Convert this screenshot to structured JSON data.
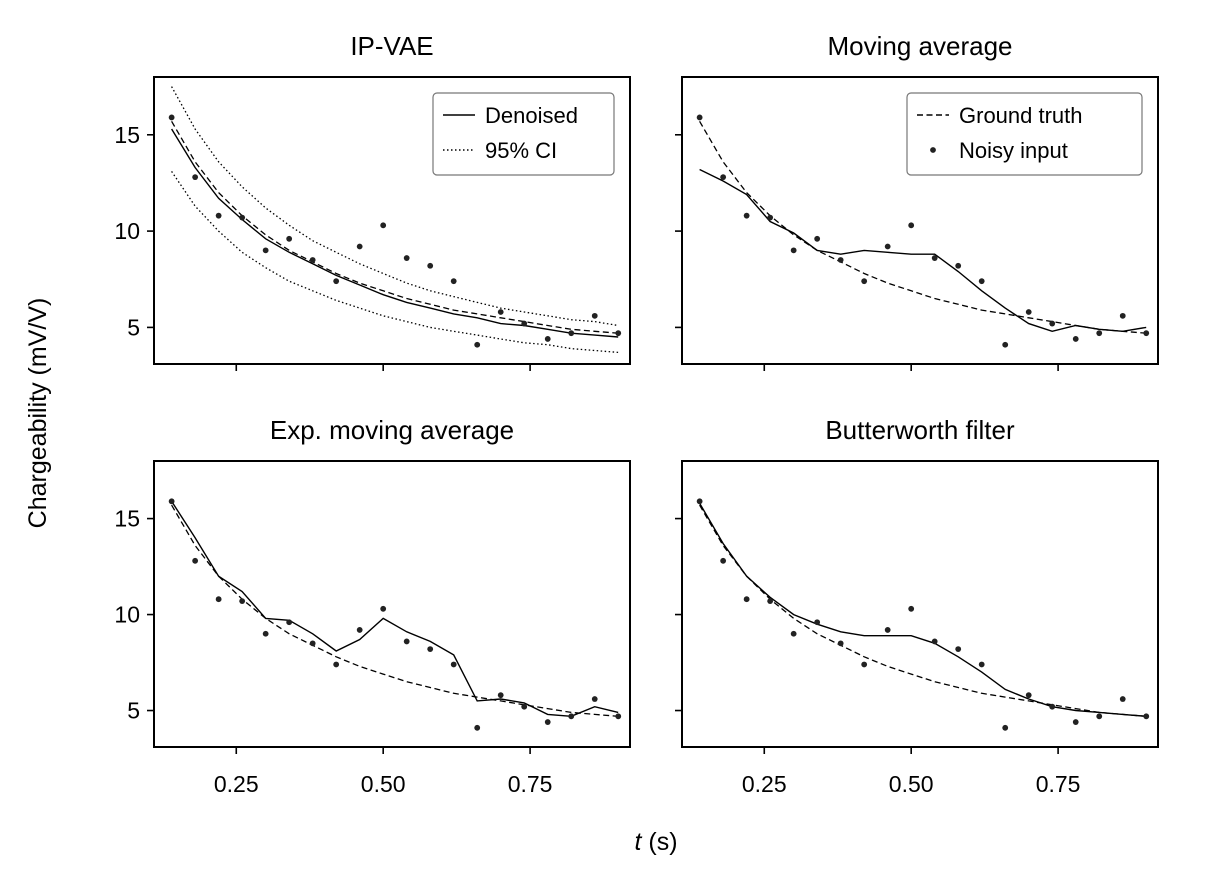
{
  "figure": {
    "ylabel": "Chargeability (mV/V)",
    "xlabel_var": "t",
    "xlabel_unit": " (s)"
  },
  "chart_data": [
    {
      "type": "line",
      "title": "IP-VAE",
      "xlim": [
        0.11,
        0.92
      ],
      "ylim": [
        3.1,
        18.0
      ],
      "xticks": [
        0.25,
        0.5,
        0.75
      ],
      "xtick_labels": [
        "0.25",
        "0.50",
        "0.75"
      ],
      "yticks": [
        5,
        10,
        15
      ],
      "ytick_labels": [
        "5",
        "10",
        "15"
      ],
      "show_xticklabels": false,
      "show_yticklabels": true,
      "legend": {
        "position": "top-right",
        "entries": [
          {
            "label": "Denoised",
            "series": "denoised"
          },
          {
            "label": "95% CI",
            "series": "ci"
          }
        ]
      },
      "x": [
        0.14,
        0.18,
        0.22,
        0.26,
        0.3,
        0.34,
        0.38,
        0.42,
        0.46,
        0.5,
        0.54,
        0.58,
        0.62,
        0.66,
        0.7,
        0.74,
        0.78,
        0.82,
        0.86,
        0.9
      ],
      "series": [
        {
          "key": "noisy",
          "name": "Noisy input",
          "style": "points",
          "values": [
            15.9,
            12.8,
            10.8,
            10.7,
            9.0,
            9.6,
            8.5,
            7.4,
            9.2,
            10.3,
            8.6,
            8.2,
            7.4,
            4.1,
            5.8,
            5.2,
            4.4,
            4.7,
            5.6,
            4.7
          ]
        },
        {
          "key": "truth",
          "name": "Ground truth",
          "style": "dashed",
          "values": [
            15.7,
            13.6,
            12.0,
            10.8,
            9.8,
            9.0,
            8.4,
            7.8,
            7.3,
            6.9,
            6.5,
            6.2,
            5.9,
            5.7,
            5.5,
            5.3,
            5.1,
            4.9,
            4.8,
            4.7
          ]
        },
        {
          "key": "denoised",
          "name": "Denoised",
          "style": "solid",
          "values": [
            15.3,
            13.3,
            11.7,
            10.6,
            9.6,
            8.9,
            8.3,
            7.7,
            7.2,
            6.7,
            6.3,
            6.0,
            5.7,
            5.5,
            5.2,
            5.1,
            4.9,
            4.7,
            4.6,
            4.5
          ]
        },
        {
          "key": "ci_upper",
          "name": "95% CI",
          "style": "dotted",
          "values": [
            17.5,
            15.3,
            13.6,
            12.3,
            11.2,
            10.3,
            9.5,
            8.9,
            8.3,
            7.8,
            7.3,
            6.9,
            6.6,
            6.3,
            6.0,
            5.8,
            5.6,
            5.4,
            5.3,
            5.1
          ]
        },
        {
          "key": "ci_lower",
          "name": "95% CI",
          "style": "dotted",
          "values": [
            13.1,
            11.3,
            10.0,
            8.9,
            8.1,
            7.4,
            6.9,
            6.4,
            6.0,
            5.6,
            5.3,
            5.0,
            4.8,
            4.6,
            4.4,
            4.2,
            4.1,
            3.9,
            3.8,
            3.7
          ]
        }
      ]
    },
    {
      "type": "line",
      "title": "Moving average",
      "xlim": [
        0.11,
        0.92
      ],
      "ylim": [
        3.1,
        18.0
      ],
      "xticks": [
        0.25,
        0.5,
        0.75
      ],
      "xtick_labels": [
        "0.25",
        "0.50",
        "0.75"
      ],
      "yticks": [
        5,
        10,
        15
      ],
      "ytick_labels": [
        "5",
        "10",
        "15"
      ],
      "show_xticklabels": false,
      "show_yticklabels": false,
      "legend": {
        "position": "top-right",
        "entries": [
          {
            "label": "Ground truth",
            "series": "truth"
          },
          {
            "label": "Noisy input",
            "series": "noisy"
          }
        ]
      },
      "x": [
        0.14,
        0.18,
        0.22,
        0.26,
        0.3,
        0.34,
        0.38,
        0.42,
        0.46,
        0.5,
        0.54,
        0.58,
        0.62,
        0.66,
        0.7,
        0.74,
        0.78,
        0.82,
        0.86,
        0.9
      ],
      "series": [
        {
          "key": "noisy",
          "name": "Noisy input",
          "style": "points",
          "values": [
            15.9,
            12.8,
            10.8,
            10.7,
            9.0,
            9.6,
            8.5,
            7.4,
            9.2,
            10.3,
            8.6,
            8.2,
            7.4,
            4.1,
            5.8,
            5.2,
            4.4,
            4.7,
            5.6,
            4.7
          ]
        },
        {
          "key": "truth",
          "name": "Ground truth",
          "style": "dashed",
          "values": [
            15.7,
            13.6,
            12.0,
            10.8,
            9.8,
            9.0,
            8.4,
            7.8,
            7.3,
            6.9,
            6.5,
            6.2,
            5.9,
            5.7,
            5.5,
            5.3,
            5.1,
            4.9,
            4.8,
            4.7
          ]
        },
        {
          "key": "smoothed",
          "name": "Moving average",
          "style": "solid",
          "values": [
            13.2,
            12.6,
            11.9,
            10.5,
            9.9,
            9.0,
            8.8,
            9.0,
            8.9,
            8.8,
            8.8,
            7.9,
            6.9,
            6.0,
            5.2,
            4.8,
            5.1,
            4.9,
            4.8,
            5.0
          ]
        }
      ]
    },
    {
      "type": "line",
      "title": "Exp. moving average",
      "xlim": [
        0.11,
        0.92
      ],
      "ylim": [
        3.1,
        18.0
      ],
      "xticks": [
        0.25,
        0.5,
        0.75
      ],
      "xtick_labels": [
        "0.25",
        "0.50",
        "0.75"
      ],
      "yticks": [
        5,
        10,
        15
      ],
      "ytick_labels": [
        "5",
        "10",
        "15"
      ],
      "show_xticklabels": true,
      "show_yticklabels": true,
      "legend": null,
      "x": [
        0.14,
        0.18,
        0.22,
        0.26,
        0.3,
        0.34,
        0.38,
        0.42,
        0.46,
        0.5,
        0.54,
        0.58,
        0.62,
        0.66,
        0.7,
        0.74,
        0.78,
        0.82,
        0.86,
        0.9
      ],
      "series": [
        {
          "key": "noisy",
          "name": "Noisy input",
          "style": "points",
          "values": [
            15.9,
            12.8,
            10.8,
            10.7,
            9.0,
            9.6,
            8.5,
            7.4,
            9.2,
            10.3,
            8.6,
            8.2,
            7.4,
            4.1,
            5.8,
            5.2,
            4.4,
            4.7,
            5.6,
            4.7
          ]
        },
        {
          "key": "truth",
          "name": "Ground truth",
          "style": "dashed",
          "values": [
            15.7,
            13.6,
            12.0,
            10.8,
            9.8,
            9.0,
            8.4,
            7.8,
            7.3,
            6.9,
            6.5,
            6.2,
            5.9,
            5.7,
            5.5,
            5.3,
            5.1,
            4.9,
            4.8,
            4.7
          ]
        },
        {
          "key": "smoothed",
          "name": "Exp. moving average",
          "style": "solid",
          "values": [
            15.9,
            14.0,
            12.0,
            11.2,
            9.8,
            9.7,
            9.0,
            8.1,
            8.7,
            9.8,
            9.1,
            8.6,
            7.9,
            5.5,
            5.6,
            5.4,
            4.8,
            4.7,
            5.2,
            4.9
          ]
        }
      ]
    },
    {
      "type": "line",
      "title": "Butterworth filter",
      "xlim": [
        0.11,
        0.92
      ],
      "ylim": [
        3.1,
        18.0
      ],
      "xticks": [
        0.25,
        0.5,
        0.75
      ],
      "xtick_labels": [
        "0.25",
        "0.50",
        "0.75"
      ],
      "yticks": [
        5,
        10,
        15
      ],
      "ytick_labels": [
        "5",
        "10",
        "15"
      ],
      "show_xticklabels": true,
      "show_yticklabels": false,
      "legend": null,
      "x": [
        0.14,
        0.18,
        0.22,
        0.26,
        0.3,
        0.34,
        0.38,
        0.42,
        0.46,
        0.5,
        0.54,
        0.58,
        0.62,
        0.66,
        0.7,
        0.74,
        0.78,
        0.82,
        0.86,
        0.9
      ],
      "series": [
        {
          "key": "noisy",
          "name": "Noisy input",
          "style": "points",
          "values": [
            15.9,
            12.8,
            10.8,
            10.7,
            9.0,
            9.6,
            8.5,
            7.4,
            9.2,
            10.3,
            8.6,
            8.2,
            7.4,
            4.1,
            5.8,
            5.2,
            4.4,
            4.7,
            5.6,
            4.7
          ]
        },
        {
          "key": "truth",
          "name": "Ground truth",
          "style": "dashed",
          "values": [
            15.7,
            13.6,
            12.0,
            10.8,
            9.8,
            9.0,
            8.4,
            7.8,
            7.3,
            6.9,
            6.5,
            6.2,
            5.9,
            5.7,
            5.5,
            5.3,
            5.1,
            4.9,
            4.8,
            4.7
          ]
        },
        {
          "key": "smoothed",
          "name": "Butterworth filter",
          "style": "solid",
          "values": [
            15.8,
            13.7,
            12.0,
            10.9,
            10.0,
            9.5,
            9.1,
            8.9,
            8.9,
            8.9,
            8.5,
            7.8,
            7.0,
            6.1,
            5.6,
            5.2,
            5.0,
            4.9,
            4.8,
            4.7
          ]
        }
      ]
    }
  ]
}
